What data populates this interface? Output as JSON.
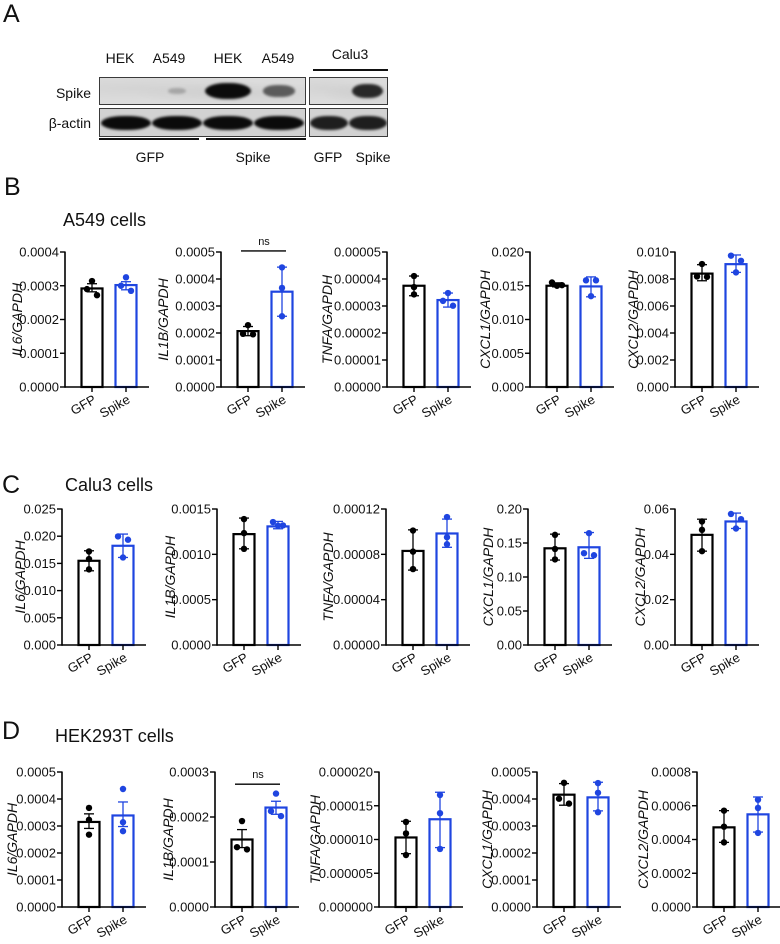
{
  "panel_a": {
    "letter": "A",
    "lane_labels": [
      "HEK",
      "A549",
      "HEK",
      "A549"
    ],
    "calu3_header": "Calu3",
    "row_labels": {
      "spike": "Spike",
      "actin": "β-actin"
    },
    "group_labels": [
      "GFP",
      "Spike"
    ],
    "calu3_lane_labels": [
      "GFP",
      "Spike"
    ],
    "band_intensity": {
      "spike": [
        0.0,
        0.22,
        1.0,
        0.6
      ],
      "actin": [
        1.0,
        1.0,
        1.0,
        1.0
      ],
      "calu3_spike": [
        0.0,
        0.85
      ],
      "calu3_actin": [
        0.9,
        0.9
      ]
    }
  },
  "panels": [
    {
      "letter": "B",
      "subtitle": "A549 cells"
    },
    {
      "letter": "C",
      "subtitle": "Calu3 cells"
    },
    {
      "letter": "D",
      "subtitle": "HEK293T cells"
    }
  ],
  "colors": {
    "gfp": "#000000",
    "spike": "#1f45e0"
  },
  "chart_data": [
    {
      "type": "bar",
      "panel": "B",
      "title": "A549 cells",
      "ylabel": "IL6/GAPDH",
      "xlabel": "",
      "categories": [
        "GFP",
        "Spike"
      ],
      "ylim": [
        0,
        0.0004
      ],
      "yticks": [
        "0.0000",
        "0.0001",
        "0.0002",
        "0.0003",
        "0.0004"
      ],
      "series": [
        {
          "name": "GFP",
          "value": 0.000292,
          "error": [
            0.000282,
            0.000306
          ],
          "points": [
            0.000314,
            0.00029,
            0.000272
          ]
        },
        {
          "name": "Spike",
          "value": 0.000302,
          "error": [
            0.000288,
            0.000312
          ],
          "points": [
            0.000325,
            0.0003,
            0.000285
          ]
        }
      ],
      "annotation": null
    },
    {
      "type": "bar",
      "panel": "B",
      "title": "A549 cells",
      "ylabel": "IL1B/GAPDH",
      "xlabel": "",
      "categories": [
        "GFP",
        "Spike"
      ],
      "ylim": [
        0,
        0.0005
      ],
      "yticks": [
        "0.0000",
        "0.0001",
        "0.0002",
        "0.0003",
        "0.0004",
        "0.0005"
      ],
      "series": [
        {
          "name": "GFP",
          "value": 0.000207,
          "error": [
            0.00019,
            0.000224
          ],
          "points": [
            0.000229,
            0.000197,
            0.000195
          ]
        },
        {
          "name": "Spike",
          "value": 0.000353,
          "error": [
            0.000262,
            0.000444
          ],
          "points": [
            0.000443,
            0.000367,
            0.000262
          ]
        }
      ],
      "annotation": {
        "text": "ns",
        "bracket_y": 0.000504
      }
    },
    {
      "type": "bar",
      "panel": "B",
      "title": "A549 cells",
      "ylabel": "TNFA/GAPDH",
      "xlabel": "",
      "categories": [
        "GFP",
        "Spike"
      ],
      "ylim": [
        0,
        5e-05
      ],
      "yticks": [
        "0.00000",
        "0.00001",
        "0.00002",
        "0.00003",
        "0.00004",
        "0.00005"
      ],
      "series": [
        {
          "name": "GFP",
          "value": 3.75e-05,
          "error": [
            3.38e-05,
            4.11e-05
          ],
          "points": [
            4.11e-05,
            3.7e-05,
            3.43e-05
          ]
        },
        {
          "name": "Spike",
          "value": 3.22e-05,
          "error": [
            2.96e-05,
            3.48e-05
          ],
          "points": [
            3.48e-05,
            3.19e-05,
            3.01e-05
          ]
        }
      ],
      "annotation": null
    },
    {
      "type": "bar",
      "panel": "B",
      "title": "A549 cells",
      "ylabel": "CXCL1/GAPDH",
      "xlabel": "",
      "categories": [
        "GFP",
        "Spike"
      ],
      "ylim": [
        0,
        0.02
      ],
      "yticks": [
        "0.000",
        "0.005",
        "0.010",
        "0.015",
        "0.020"
      ],
      "series": [
        {
          "name": "GFP",
          "value": 0.015,
          "error": [
            0.01484,
            0.01543
          ],
          "points": [
            0.01548,
            0.01509,
            0.015
          ]
        },
        {
          "name": "Spike",
          "value": 0.0149,
          "error": [
            0.01336,
            0.01631
          ],
          "points": [
            0.0158,
            0.0158,
            0.01346
          ]
        }
      ],
      "annotation": null
    },
    {
      "type": "bar",
      "panel": "B",
      "title": "A549 cells",
      "ylabel": "CXCL2/GAPDH",
      "xlabel": "",
      "categories": [
        "GFP",
        "Spike"
      ],
      "ylim": [
        0,
        0.01
      ],
      "yticks": [
        "0.000",
        "0.002",
        "0.004",
        "0.006",
        "0.008",
        "0.010"
      ],
      "series": [
        {
          "name": "GFP",
          "value": 0.0084,
          "error": [
            0.00787,
            0.00906
          ],
          "points": [
            0.00911,
            0.00819,
            0.00816
          ]
        },
        {
          "name": "Spike",
          "value": 0.0091,
          "error": [
            0.00849,
            0.00978
          ],
          "points": [
            0.00973,
            0.00935,
            0.00849
          ]
        }
      ],
      "annotation": null
    },
    {
      "type": "bar",
      "panel": "C",
      "title": "Calu3 cells",
      "ylabel": "IL6/GAPDH",
      "xlabel": "",
      "categories": [
        "GFP",
        "Spike"
      ],
      "ylim": [
        0,
        0.025
      ],
      "yticks": [
        "0.000",
        "0.005",
        "0.010",
        "0.015",
        "0.020",
        "0.025"
      ],
      "series": [
        {
          "name": "GFP",
          "value": 0.01548,
          "error": [
            0.01364,
            0.01732
          ],
          "points": [
            0.0172,
            0.0158,
            0.0139
          ]
        },
        {
          "name": "Spike",
          "value": 0.01824,
          "error": [
            0.01609,
            0.02039
          ],
          "points": [
            0.01996,
            0.01935,
            0.01609
          ]
        }
      ],
      "annotation": null
    },
    {
      "type": "bar",
      "panel": "C",
      "title": "Calu3 cells",
      "ylabel": "IL1B/GAPDH",
      "xlabel": "",
      "categories": [
        "GFP",
        "Spike"
      ],
      "ylim": [
        0,
        0.0015
      ],
      "yticks": [
        "0.0000",
        "0.0005",
        "0.0010",
        "0.0015"
      ],
      "series": [
        {
          "name": "GFP",
          "value": 0.001223,
          "error": [
            0.001061,
            0.0014
          ],
          "points": [
            0.001389,
            0.001234,
            0.001061
          ]
        },
        {
          "name": "Spike",
          "value": 0.001308,
          "error": [
            0.001282,
            0.001363
          ],
          "points": [
            0.001356,
            0.001319,
            0.001315
          ]
        }
      ],
      "annotation": null
    },
    {
      "type": "bar",
      "panel": "C",
      "title": "Calu3 cells",
      "ylabel": "TNFA/GAPDH",
      "xlabel": "",
      "categories": [
        "GFP",
        "Spike"
      ],
      "ylim": [
        0,
        0.00012
      ],
      "yticks": [
        "0.00000",
        "0.00004",
        "0.00008",
        "0.00012"
      ],
      "series": [
        {
          "name": "GFP",
          "value": 8.3e-05,
          "error": [
            6.61e-05,
            0.0001016
          ],
          "points": [
            0.000101,
            8.24e-05,
            6.7e-05
          ]
        },
        {
          "name": "Spike",
          "value": 9.84e-05,
          "error": [
            8.62e-05,
            0.0001111
          ],
          "points": [
            0.0001129,
            9.51e-05,
            8.89e-05
          ]
        }
      ],
      "annotation": null
    },
    {
      "type": "bar",
      "panel": "C",
      "title": "Calu3 cells",
      "ylabel": "CXCL1/GAPDH",
      "xlabel": "",
      "categories": [
        "GFP",
        "Spike"
      ],
      "ylim": [
        0,
        0.2
      ],
      "yticks": [
        "0.00",
        "0.05",
        "0.10",
        "0.15",
        "0.20"
      ],
      "series": [
        {
          "name": "GFP",
          "value": 0.1422,
          "error": [
            0.1249,
            0.163
          ],
          "points": [
            0.162,
            0.1412,
            0.1259
          ]
        },
        {
          "name": "Spike",
          "value": 0.1437,
          "error": [
            0.1274,
            0.1654
          ],
          "points": [
            0.1645,
            0.135,
            0.132
          ]
        }
      ],
      "annotation": null
    },
    {
      "type": "bar",
      "panel": "C",
      "title": "Calu3 cells",
      "ylabel": "CXCL2/GAPDH",
      "xlabel": "",
      "categories": [
        "GFP",
        "Spike"
      ],
      "ylim": [
        0,
        0.06
      ],
      "yticks": [
        "0.00",
        "0.02",
        "0.04",
        "0.06"
      ],
      "series": [
        {
          "name": "GFP",
          "value": 0.0486,
          "error": [
            0.0414,
            0.0555
          ],
          "points": [
            0.0545,
            0.0508,
            0.0414
          ]
        },
        {
          "name": "Spike",
          "value": 0.0545,
          "error": [
            0.0514,
            0.0582
          ],
          "points": [
            0.0578,
            0.0555,
            0.0514
          ]
        }
      ],
      "annotation": null
    },
    {
      "type": "bar",
      "panel": "D",
      "title": "HEK293T cells",
      "ylabel": "IL6/GAPDH",
      "xlabel": "",
      "categories": [
        "GFP",
        "Spike"
      ],
      "ylim": [
        0,
        0.0005
      ],
      "yticks": [
        "0.0000",
        "0.0001",
        "0.0002",
        "0.0003",
        "0.0004",
        "0.0005"
      ],
      "series": [
        {
          "name": "GFP",
          "value": 0.000315,
          "error": [
            0.000291,
            0.000345
          ],
          "points": [
            0.000367,
            0.000323,
            0.000268
          ]
        },
        {
          "name": "Spike",
          "value": 0.000339,
          "error": [
            0.000298,
            0.000389
          ],
          "points": [
            0.000437,
            0.000314,
            0.000281
          ]
        }
      ],
      "annotation": null
    },
    {
      "type": "bar",
      "panel": "D",
      "title": "HEK293T cells",
      "ylabel": "IL1B/GAPDH",
      "xlabel": "",
      "categories": [
        "GFP",
        "Spike"
      ],
      "ylim": [
        0,
        0.0003
      ],
      "yticks": [
        "0.0000",
        "0.0001",
        "0.0002",
        "0.0003"
      ],
      "series": [
        {
          "name": "GFP",
          "value": 0.00015,
          "error": [
            0.000132,
            0.000172
          ],
          "points": [
            0.000191,
            0.000133,
            0.000128
          ]
        },
        {
          "name": "Spike",
          "value": 0.000221,
          "error": [
            0.000206,
            0.000235
          ],
          "points": [
            0.000252,
            0.000213,
            0.000202
          ]
        }
      ],
      "annotation": {
        "text": "ns",
        "bracket_y": 0.000273
      }
    },
    {
      "type": "bar",
      "panel": "D",
      "title": "HEK293T cells",
      "ylabel": "TNFA/GAPDH",
      "xlabel": "",
      "categories": [
        "GFP",
        "Spike"
      ],
      "ylim": [
        0,
        2e-05
      ],
      "yticks": [
        "0.000000",
        "0.000005",
        "0.000010",
        "0.000015",
        "0.000020"
      ],
      "series": [
        {
          "name": "GFP",
          "value": 1.03e-05,
          "error": [
            7.9e-06,
            1.27e-05
          ],
          "points": [
            1.26e-05,
            1.09e-05,
            7.7e-06
          ]
        },
        {
          "name": "Spike",
          "value": 1.3e-05,
          "error": [
            8.8e-06,
            1.7e-05
          ],
          "points": [
            1.66e-05,
            1.39e-05,
            8.6e-06
          ]
        }
      ],
      "annotation": null
    },
    {
      "type": "bar",
      "panel": "D",
      "title": "HEK293T cells",
      "ylabel": "CXCL1/GAPDH",
      "xlabel": "",
      "categories": [
        "GFP",
        "Spike"
      ],
      "ylim": [
        0,
        0.0005
      ],
      "yticks": [
        "0.0000",
        "0.0001",
        "0.0002",
        "0.0003",
        "0.0004",
        "0.0005"
      ],
      "series": [
        {
          "name": "GFP",
          "value": 0.000416,
          "error": [
            0.000377,
            0.000457
          ],
          "points": [
            0.00046,
            0.000401,
            0.000383
          ]
        },
        {
          "name": "Spike",
          "value": 0.000406,
          "error": [
            0.000356,
            0.000462
          ],
          "points": [
            0.000459,
            0.000423,
            0.000351
          ]
        }
      ],
      "annotation": null
    },
    {
      "type": "bar",
      "panel": "D",
      "title": "HEK293T cells",
      "ylabel": "CXCL2/GAPDH",
      "xlabel": "",
      "categories": [
        "GFP",
        "Spike"
      ],
      "ylim": [
        0,
        0.0008
      ],
      "yticks": [
        "0.0000",
        "0.0002",
        "0.0004",
        "0.0006",
        "0.0008"
      ],
      "series": [
        {
          "name": "GFP",
          "value": 0.000472,
          "error": [
            0.000383,
            0.000571
          ],
          "points": [
            0.000571,
            0.000476,
            0.000383
          ]
        },
        {
          "name": "Spike",
          "value": 0.000549,
          "error": [
            0.000444,
            0.000652
          ],
          "points": [
            0.000636,
            0.000587,
            0.000439
          ]
        }
      ],
      "annotation": null
    }
  ]
}
